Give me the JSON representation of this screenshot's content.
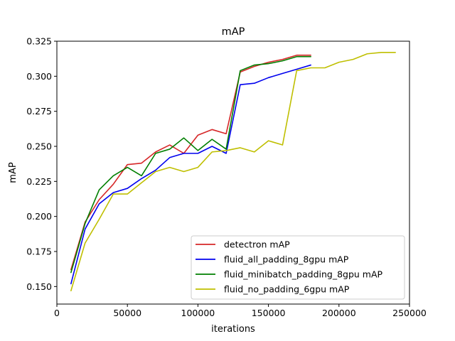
{
  "chart_data": {
    "type": "line",
    "title": "mAP",
    "xlabel": "iterations",
    "ylabel": "mAP",
    "xlim": [
      0,
      250000
    ],
    "ylim": [
      0.1375,
      0.325
    ],
    "x_ticks": [
      0,
      50000,
      100000,
      150000,
      200000,
      250000
    ],
    "x_tick_labels": [
      "0",
      "50000",
      "100000",
      "150000",
      "200000",
      "250000"
    ],
    "y_ticks": [
      0.15,
      0.175,
      0.2,
      0.225,
      0.25,
      0.275,
      0.3,
      0.325
    ],
    "y_tick_labels": [
      "0.150",
      "0.175",
      "0.200",
      "0.225",
      "0.250",
      "0.275",
      "0.300",
      "0.325"
    ],
    "grid": false,
    "legend_position": "lower-right",
    "series": [
      {
        "name": "detectron mAP",
        "color": "#d62728",
        "x": [
          10000,
          20000,
          30000,
          40000,
          50000,
          60000,
          70000,
          80000,
          90000,
          100000,
          110000,
          120000,
          130000,
          140000,
          150000,
          160000,
          170000,
          180000
        ],
        "y": [
          0.162,
          0.196,
          0.212,
          0.223,
          0.237,
          0.238,
          0.246,
          0.251,
          0.245,
          0.258,
          0.262,
          0.259,
          0.303,
          0.307,
          0.31,
          0.312,
          0.315,
          0.315
        ]
      },
      {
        "name": "fluid_all_padding_8gpu mAP",
        "color": "#0000ee",
        "x": [
          10000,
          20000,
          30000,
          40000,
          50000,
          60000,
          70000,
          80000,
          90000,
          100000,
          110000,
          120000,
          130000,
          140000,
          150000,
          160000,
          170000,
          180000
        ],
        "y": [
          0.152,
          0.191,
          0.209,
          0.217,
          0.22,
          0.227,
          0.233,
          0.242,
          0.245,
          0.245,
          0.25,
          0.245,
          0.294,
          0.295,
          0.299,
          0.302,
          0.305,
          0.308
        ]
      },
      {
        "name": "fluid_minibatch_padding_8gpu mAP",
        "color": "#007f00",
        "x": [
          10000,
          20000,
          30000,
          40000,
          50000,
          60000,
          70000,
          80000,
          90000,
          100000,
          110000,
          120000,
          130000,
          140000,
          150000,
          160000,
          170000,
          180000
        ],
        "y": [
          0.16,
          0.195,
          0.219,
          0.229,
          0.235,
          0.229,
          0.245,
          0.248,
          0.256,
          0.247,
          0.255,
          0.248,
          0.304,
          0.308,
          0.309,
          0.311,
          0.314,
          0.314
        ]
      },
      {
        "name": "fluid_no_padding_6gpu mAP",
        "color": "#bfbf00",
        "x": [
          10000,
          20000,
          30000,
          40000,
          50000,
          60000,
          70000,
          80000,
          90000,
          100000,
          110000,
          120000,
          130000,
          140000,
          150000,
          160000,
          170000,
          180000,
          190000,
          200000,
          210000,
          220000,
          230000,
          240000
        ],
        "y": [
          0.147,
          0.181,
          0.198,
          0.216,
          0.216,
          0.224,
          0.232,
          0.235,
          0.232,
          0.235,
          0.246,
          0.247,
          0.249,
          0.246,
          0.254,
          0.251,
          0.304,
          0.306,
          0.306,
          0.31,
          0.312,
          0.316,
          0.317,
          0.317
        ]
      }
    ]
  }
}
